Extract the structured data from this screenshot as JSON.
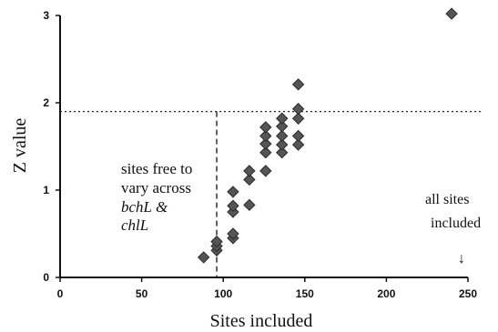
{
  "chart_data": {
    "type": "scatter",
    "xlabel": "Sites included",
    "ylabel": "Z value",
    "xlim": [
      0,
      250
    ],
    "ylim": [
      0,
      3
    ],
    "xticks": [
      "0",
      "50",
      "100",
      "150",
      "200",
      "250"
    ],
    "yticks": [
      "0",
      "1",
      "2",
      "3"
    ],
    "grid": false,
    "marker": "diamond",
    "marker_color": "#555555",
    "threshold_y": 1.9,
    "vertical_reference_x": 96,
    "points": [
      {
        "x": 88,
        "y": 0.23
      },
      {
        "x": 96,
        "y": 0.31
      },
      {
        "x": 96,
        "y": 0.36
      },
      {
        "x": 96,
        "y": 0.41
      },
      {
        "x": 106,
        "y": 0.45
      },
      {
        "x": 106,
        "y": 0.5
      },
      {
        "x": 106,
        "y": 0.75
      },
      {
        "x": 106,
        "y": 0.82
      },
      {
        "x": 106,
        "y": 0.98
      },
      {
        "x": 116,
        "y": 0.83
      },
      {
        "x": 116,
        "y": 1.12
      },
      {
        "x": 116,
        "y": 1.22
      },
      {
        "x": 126,
        "y": 1.22
      },
      {
        "x": 126,
        "y": 1.43
      },
      {
        "x": 126,
        "y": 1.53
      },
      {
        "x": 126,
        "y": 1.62
      },
      {
        "x": 126,
        "y": 1.72
      },
      {
        "x": 136,
        "y": 1.43
      },
      {
        "x": 136,
        "y": 1.52
      },
      {
        "x": 136,
        "y": 1.62
      },
      {
        "x": 136,
        "y": 1.73
      },
      {
        "x": 136,
        "y": 1.82
      },
      {
        "x": 146,
        "y": 1.52
      },
      {
        "x": 146,
        "y": 1.62
      },
      {
        "x": 146,
        "y": 1.82
      },
      {
        "x": 146,
        "y": 1.93
      },
      {
        "x": 146,
        "y": 2.21
      },
      {
        "x": 240,
        "y": 3.02
      }
    ],
    "annotations": {
      "free_line1": "sites free to",
      "free_line2": "vary across",
      "free_line3": "bchL &",
      "free_line4": "chlL",
      "all_line1": "all sites",
      "all_line2": "included",
      "arrow_down": "↓"
    }
  }
}
